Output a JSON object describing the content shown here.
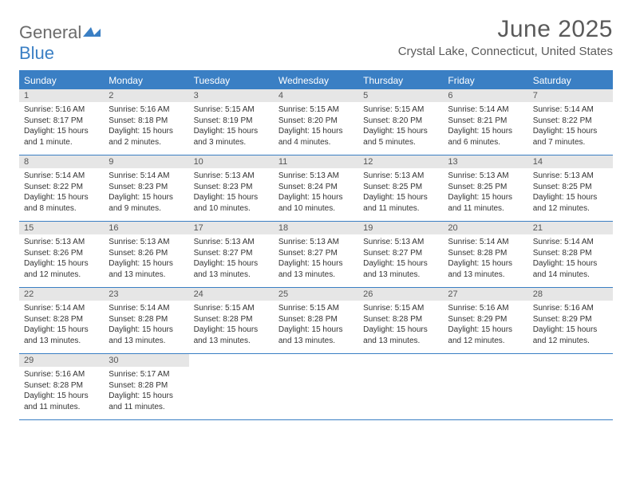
{
  "logo": {
    "part1": "General",
    "part2": "Blue"
  },
  "header": {
    "title": "June 2025",
    "location": "Crystal Lake, Connecticut, United States"
  },
  "palette": {
    "accent": "#3a7fc4",
    "weekday_bg": "#3a7fc4",
    "weekday_text": "#ffffff",
    "daynum_bg": "#e6e6e6",
    "text": "#333333",
    "title_text": "#5a5a5a"
  },
  "weekdays": [
    "Sunday",
    "Monday",
    "Tuesday",
    "Wednesday",
    "Thursday",
    "Friday",
    "Saturday"
  ],
  "days": [
    {
      "n": 1,
      "sunrise": "5:16 AM",
      "sunset": "8:17 PM",
      "daylight": "15 hours and 1 minute."
    },
    {
      "n": 2,
      "sunrise": "5:16 AM",
      "sunset": "8:18 PM",
      "daylight": "15 hours and 2 minutes."
    },
    {
      "n": 3,
      "sunrise": "5:15 AM",
      "sunset": "8:19 PM",
      "daylight": "15 hours and 3 minutes."
    },
    {
      "n": 4,
      "sunrise": "5:15 AM",
      "sunset": "8:20 PM",
      "daylight": "15 hours and 4 minutes."
    },
    {
      "n": 5,
      "sunrise": "5:15 AM",
      "sunset": "8:20 PM",
      "daylight": "15 hours and 5 minutes."
    },
    {
      "n": 6,
      "sunrise": "5:14 AM",
      "sunset": "8:21 PM",
      "daylight": "15 hours and 6 minutes."
    },
    {
      "n": 7,
      "sunrise": "5:14 AM",
      "sunset": "8:22 PM",
      "daylight": "15 hours and 7 minutes."
    },
    {
      "n": 8,
      "sunrise": "5:14 AM",
      "sunset": "8:22 PM",
      "daylight": "15 hours and 8 minutes."
    },
    {
      "n": 9,
      "sunrise": "5:14 AM",
      "sunset": "8:23 PM",
      "daylight": "15 hours and 9 minutes."
    },
    {
      "n": 10,
      "sunrise": "5:13 AM",
      "sunset": "8:23 PM",
      "daylight": "15 hours and 10 minutes."
    },
    {
      "n": 11,
      "sunrise": "5:13 AM",
      "sunset": "8:24 PM",
      "daylight": "15 hours and 10 minutes."
    },
    {
      "n": 12,
      "sunrise": "5:13 AM",
      "sunset": "8:25 PM",
      "daylight": "15 hours and 11 minutes."
    },
    {
      "n": 13,
      "sunrise": "5:13 AM",
      "sunset": "8:25 PM",
      "daylight": "15 hours and 11 minutes."
    },
    {
      "n": 14,
      "sunrise": "5:13 AM",
      "sunset": "8:25 PM",
      "daylight": "15 hours and 12 minutes."
    },
    {
      "n": 15,
      "sunrise": "5:13 AM",
      "sunset": "8:26 PM",
      "daylight": "15 hours and 12 minutes."
    },
    {
      "n": 16,
      "sunrise": "5:13 AM",
      "sunset": "8:26 PM",
      "daylight": "15 hours and 13 minutes."
    },
    {
      "n": 17,
      "sunrise": "5:13 AM",
      "sunset": "8:27 PM",
      "daylight": "15 hours and 13 minutes."
    },
    {
      "n": 18,
      "sunrise": "5:13 AM",
      "sunset": "8:27 PM",
      "daylight": "15 hours and 13 minutes."
    },
    {
      "n": 19,
      "sunrise": "5:13 AM",
      "sunset": "8:27 PM",
      "daylight": "15 hours and 13 minutes."
    },
    {
      "n": 20,
      "sunrise": "5:14 AM",
      "sunset": "8:28 PM",
      "daylight": "15 hours and 13 minutes."
    },
    {
      "n": 21,
      "sunrise": "5:14 AM",
      "sunset": "8:28 PM",
      "daylight": "15 hours and 14 minutes."
    },
    {
      "n": 22,
      "sunrise": "5:14 AM",
      "sunset": "8:28 PM",
      "daylight": "15 hours and 13 minutes."
    },
    {
      "n": 23,
      "sunrise": "5:14 AM",
      "sunset": "8:28 PM",
      "daylight": "15 hours and 13 minutes."
    },
    {
      "n": 24,
      "sunrise": "5:15 AM",
      "sunset": "8:28 PM",
      "daylight": "15 hours and 13 minutes."
    },
    {
      "n": 25,
      "sunrise": "5:15 AM",
      "sunset": "8:28 PM",
      "daylight": "15 hours and 13 minutes."
    },
    {
      "n": 26,
      "sunrise": "5:15 AM",
      "sunset": "8:28 PM",
      "daylight": "15 hours and 13 minutes."
    },
    {
      "n": 27,
      "sunrise": "5:16 AM",
      "sunset": "8:29 PM",
      "daylight": "15 hours and 12 minutes."
    },
    {
      "n": 28,
      "sunrise": "5:16 AM",
      "sunset": "8:29 PM",
      "daylight": "15 hours and 12 minutes."
    },
    {
      "n": 29,
      "sunrise": "5:16 AM",
      "sunset": "8:28 PM",
      "daylight": "15 hours and 11 minutes."
    },
    {
      "n": 30,
      "sunrise": "5:17 AM",
      "sunset": "8:28 PM",
      "daylight": "15 hours and 11 minutes."
    }
  ],
  "labels": {
    "sunrise": "Sunrise:",
    "sunset": "Sunset:",
    "daylight": "Daylight:"
  },
  "layout": {
    "columns": 7,
    "rows": 5,
    "first_weekday_index": 0,
    "trailing_empty": 5
  }
}
